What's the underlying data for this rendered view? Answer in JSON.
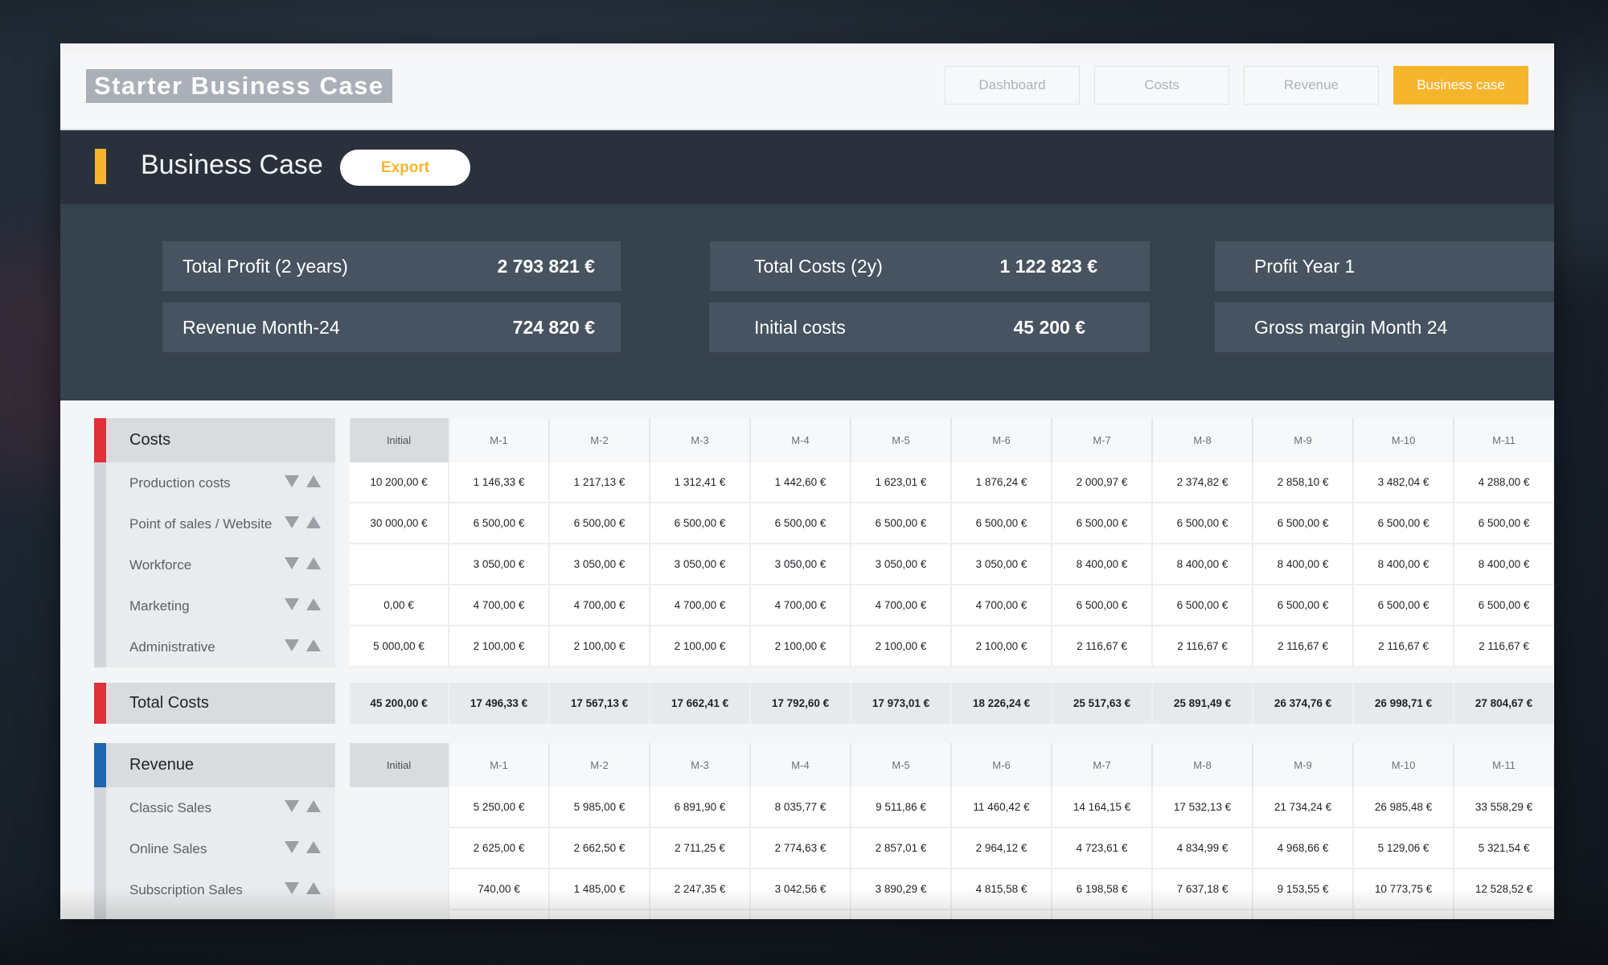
{
  "app": {
    "title": "Starter Business Case"
  },
  "nav": [
    {
      "label": "Dashboard",
      "active": false
    },
    {
      "label": "Costs",
      "active": false
    },
    {
      "label": "Revenue",
      "active": false
    },
    {
      "label": "Business case",
      "active": true
    }
  ],
  "section": {
    "title": "Business Case",
    "export_label": "Export"
  },
  "kpis": [
    {
      "label": "Total Profit (2 years)",
      "value": "2 793 821 €"
    },
    {
      "label": "Revenue Month-24",
      "value": "724 820 €"
    },
    {
      "label": "Total Costs (2y)",
      "value": "1 122 823 €"
    },
    {
      "label": "Initial costs",
      "value": "45 200 €"
    },
    {
      "label": "Profit Year 1",
      "value": ""
    },
    {
      "label": "Gross margin Month 24",
      "value": ""
    }
  ],
  "columns": [
    "Initial",
    "M-1",
    "M-2",
    "M-3",
    "M-4",
    "M-5",
    "M-6",
    "M-7",
    "M-8",
    "M-9",
    "M-10",
    "M-11"
  ],
  "costs": {
    "title": "Costs",
    "rows": [
      {
        "label": "Production costs",
        "values": [
          "10 200,00 €",
          "1 146,33 €",
          "1 217,13 €",
          "1 312,41 €",
          "1 442,60 €",
          "1 623,01 €",
          "1 876,24 €",
          "2 000,97 €",
          "2 374,82 €",
          "2 858,10 €",
          "3 482,04 €",
          "4 288,00 €"
        ]
      },
      {
        "label": "Point of sales / Website",
        "values": [
          "30 000,00 €",
          "6 500,00 €",
          "6 500,00 €",
          "6 500,00 €",
          "6 500,00 €",
          "6 500,00 €",
          "6 500,00 €",
          "6 500,00 €",
          "6 500,00 €",
          "6 500,00 €",
          "6 500,00 €",
          "6 500,00 €"
        ]
      },
      {
        "label": "Workforce",
        "values": [
          "",
          "3 050,00 €",
          "3 050,00 €",
          "3 050,00 €",
          "3 050,00 €",
          "3 050,00 €",
          "3 050,00 €",
          "8 400,00 €",
          "8 400,00 €",
          "8 400,00 €",
          "8 400,00 €",
          "8 400,00 €"
        ]
      },
      {
        "label": "Marketing",
        "values": [
          "0,00 €",
          "4 700,00 €",
          "4 700,00 €",
          "4 700,00 €",
          "4 700,00 €",
          "4 700,00 €",
          "4 700,00 €",
          "6 500,00 €",
          "6 500,00 €",
          "6 500,00 €",
          "6 500,00 €",
          "6 500,00 €"
        ]
      },
      {
        "label": "Administrative",
        "values": [
          "5 000,00 €",
          "2 100,00 €",
          "2 100,00 €",
          "2 100,00 €",
          "2 100,00 €",
          "2 100,00 €",
          "2 100,00 €",
          "2 116,67 €",
          "2 116,67 €",
          "2 116,67 €",
          "2 116,67 €",
          "2 116,67 €"
        ]
      }
    ]
  },
  "total_costs": {
    "label": "Total Costs",
    "values": [
      "45 200,00 €",
      "17 496,33 €",
      "17 567,13 €",
      "17 662,41 €",
      "17 792,60 €",
      "17 973,01 €",
      "18 226,24 €",
      "25 517,63 €",
      "25 891,49 €",
      "26 374,76 €",
      "26 998,71 €",
      "27 804,67 €"
    ]
  },
  "revenue": {
    "title": "Revenue",
    "rows": [
      {
        "label": "Classic Sales",
        "values": [
          "",
          "5 250,00 €",
          "5 985,00 €",
          "6 891,90 €",
          "8 035,77 €",
          "9 511,86 €",
          "11 460,42 €",
          "14 164,15 €",
          "17 532,13 €",
          "21 734,24 €",
          "26 985,48 €",
          "33 558,29 €"
        ]
      },
      {
        "label": "Online Sales",
        "values": [
          "",
          "2 625,00 €",
          "2 662,50 €",
          "2 711,25 €",
          "2 774,63 €",
          "2 857,01 €",
          "2 964,12 €",
          "4 723,61 €",
          "4 834,99 €",
          "4 968,66 €",
          "5 129,06 €",
          "5 321,54 €"
        ]
      },
      {
        "label": "Subscription Sales",
        "values": [
          "",
          "740,00 €",
          "1 485,00 €",
          "2 247,35 €",
          "3 042,56 €",
          "3 890,29 €",
          "4 815,58 €",
          "6 198,58 €",
          "7 637,18 €",
          "9 153,55 €",
          "10 773,75 €",
          "12 528,52 €"
        ]
      }
    ]
  },
  "colors": {
    "accent": "#f5b52d",
    "costs_stripe": "#e0313b",
    "revenue_stripe": "#1f66b0",
    "header_dark": "#2a313c",
    "kpi_panel": "#37424f"
  }
}
